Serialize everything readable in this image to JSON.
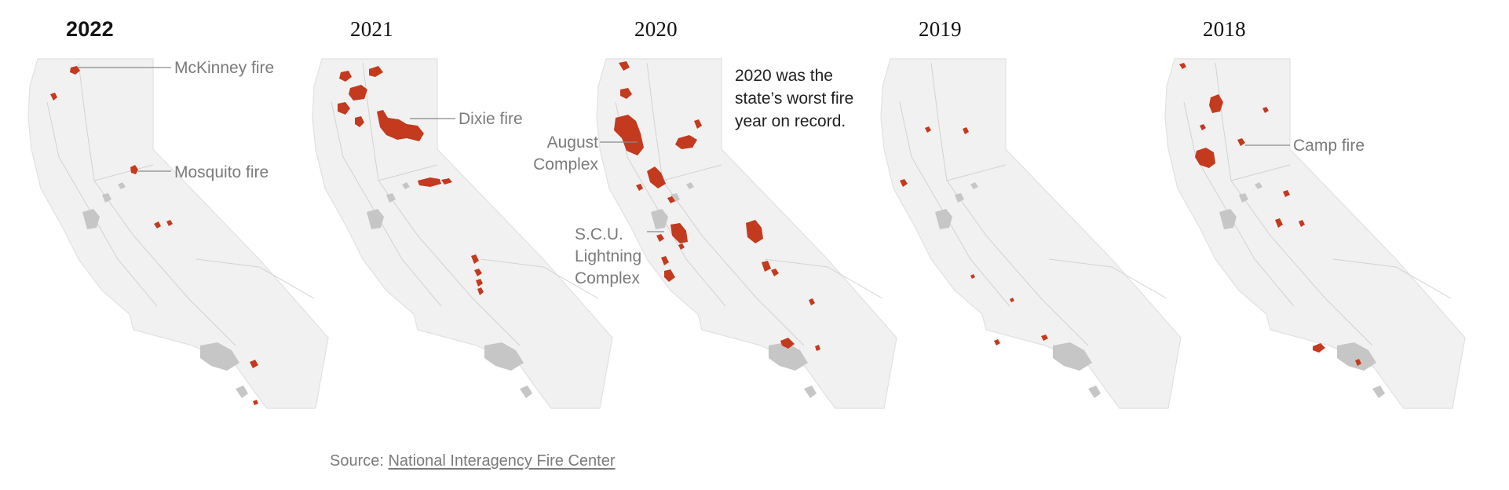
{
  "panels": [
    {
      "year": "2022",
      "is_current": true,
      "labels": [
        {
          "text": "McKinney fire"
        },
        {
          "text": "Mosquito fire"
        }
      ]
    },
    {
      "year": "2021",
      "is_current": false,
      "labels": [
        {
          "text": "Dixie fire"
        }
      ]
    },
    {
      "year": "2020",
      "is_current": false,
      "labels": [
        {
          "text": "August\nComplex"
        },
        {
          "text": "S.C.U.\nLightning\nComplex"
        }
      ],
      "note": "2020 was the state’s worst fire year on record."
    },
    {
      "year": "2019",
      "is_current": false,
      "labels": []
    },
    {
      "year": "2018",
      "is_current": false,
      "labels": [
        {
          "text": "Camp fire"
        }
      ]
    }
  ],
  "source": {
    "prefix": "Source: ",
    "link_text": "National Interagency Fire Center"
  },
  "colors": {
    "fire": "#c33a1f",
    "state_fill": "#f1f1f1",
    "urban": "#c6c6c6",
    "label": "#7b7b7b"
  }
}
